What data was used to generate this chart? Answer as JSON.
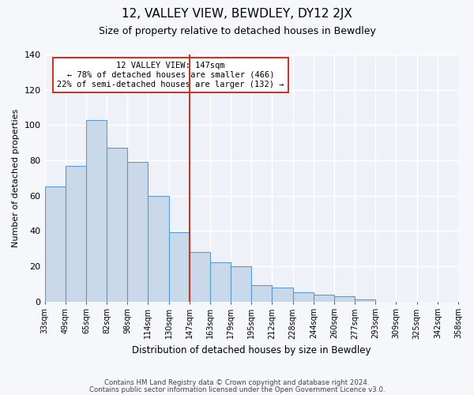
{
  "title": "12, VALLEY VIEW, BEWDLEY, DY12 2JX",
  "subtitle": "Size of property relative to detached houses in Bewdley",
  "xlabel": "Distribution of detached houses by size in Bewdley",
  "ylabel": "Number of detached properties",
  "bin_labels": [
    "33sqm",
    "49sqm",
    "65sqm",
    "82sqm",
    "98sqm",
    "114sqm",
    "130sqm",
    "147sqm",
    "163sqm",
    "179sqm",
    "195sqm",
    "212sqm",
    "228sqm",
    "244sqm",
    "260sqm",
    "277sqm",
    "293sqm",
    "309sqm",
    "325sqm",
    "342sqm",
    "358sqm"
  ],
  "bar_values": [
    65,
    77,
    103,
    87,
    79,
    60,
    39,
    28,
    22,
    20,
    9,
    8,
    5,
    4,
    3,
    1,
    0,
    0,
    0,
    0
  ],
  "bar_color": "#c9d9ea",
  "bar_edge_color": "#5b9bd5",
  "background_color": "#eef2f8",
  "grid_color": "#ffffff",
  "ylim": [
    0,
    140
  ],
  "yticks": [
    0,
    20,
    40,
    60,
    80,
    100,
    120,
    140
  ],
  "vline_index": 7,
  "vline_color": "#c0392b",
  "annotation_title": "12 VALLEY VIEW: 147sqm",
  "annotation_line1": "← 78% of detached houses are smaller (466)",
  "annotation_line2": "22% of semi-detached houses are larger (132) →",
  "annotation_box_color": "#ffffff",
  "annotation_box_edge": "#c0392b",
  "footnote1": "Contains HM Land Registry data © Crown copyright and database right 2024.",
  "footnote2": "Contains public sector information licensed under the Open Government Licence v3.0."
}
